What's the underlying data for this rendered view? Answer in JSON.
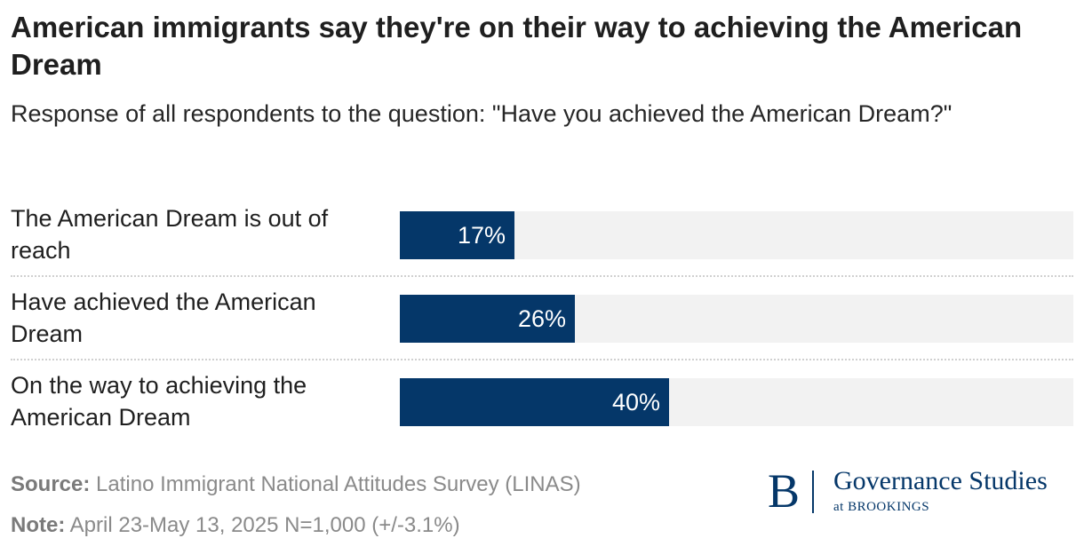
{
  "title": "American immigrants say they're on their way to achieving the American Dream",
  "subtitle": "Response of all respondents to the question: \"Have you achieved the American Dream?\"",
  "chart_data": {
    "type": "bar",
    "orientation": "horizontal",
    "categories": [
      "The American Dream is out of reach",
      "Have achieved the American Dream",
      "On the way to achieving the American Dream"
    ],
    "values": [
      17,
      26,
      40
    ],
    "value_labels": [
      "17%",
      "26%",
      "40%"
    ],
    "xlim": [
      0,
      100
    ],
    "unit": "%",
    "bar_color": "#053769",
    "track_color": "#f2f2f2"
  },
  "footer": {
    "source_label": "Source:",
    "source_text": "Latino Immigrant National Attitudes Survey (LINAS)",
    "note_label": "Note:",
    "note_text": "April 23-May 13, 2025 N=1,000 (+/-3.1%)"
  },
  "logo": {
    "letter": "B",
    "name": "Governance Studies",
    "sub_prefix": "at",
    "sub_org": "BROOKINGS"
  }
}
